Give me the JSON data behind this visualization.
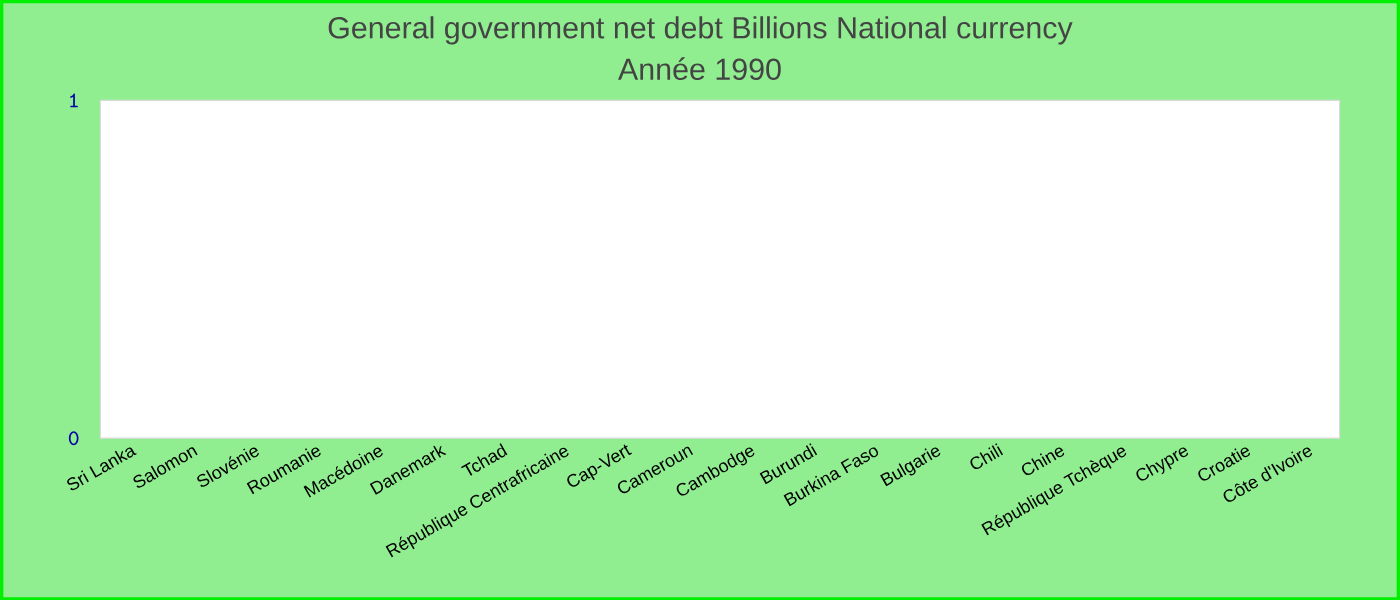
{
  "chart_data": {
    "type": "bar",
    "title": "General government net debt Billions National currency",
    "subtitle": "Année 1990",
    "categories": [
      "Sri Lanka",
      "Salomon",
      "Slovénie",
      "Roumanie",
      "Macédoine",
      "Danemark",
      "Tchad",
      "République Centrafricaine",
      "Cap-Vert",
      "Cameroun",
      "Cambodge",
      "Burundi",
      "Burkina Faso",
      "Bulgarie",
      "Chili",
      "Chine",
      "République Tchèque",
      "Chypre",
      "Croatie",
      "Côte d'Ivoire"
    ],
    "values": [
      null,
      null,
      null,
      null,
      null,
      null,
      null,
      null,
      null,
      null,
      null,
      null,
      null,
      null,
      null,
      null,
      null,
      null,
      null,
      null
    ],
    "ylim": [
      0,
      1
    ],
    "yticks": [
      0,
      1
    ],
    "grid": false
  }
}
